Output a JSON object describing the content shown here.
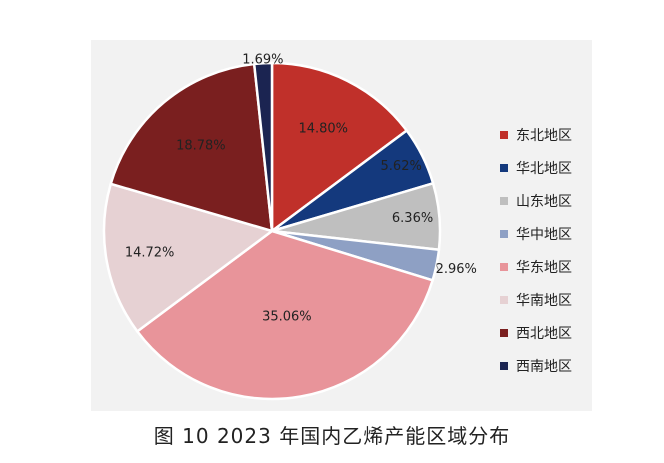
{
  "chart_data": {
    "type": "pie",
    "title": "图 10  2023 年国内乙烯产能区域分布",
    "categories": [
      "东北地区",
      "华北地区",
      "山东地区",
      "华中地区",
      "华东地区",
      "华南地区",
      "西北地区",
      "西南地区"
    ],
    "values": [
      14.8,
      5.62,
      6.36,
      2.96,
      35.06,
      14.72,
      18.78,
      1.69
    ],
    "labels": [
      "14.80%",
      "5.62%",
      "6.36%",
      "2.96%",
      "35.06%",
      "14.72%",
      "18.78%",
      "1.69%"
    ],
    "colors": [
      "#c0302a",
      "#14397d",
      "#bfbfbf",
      "#8ea0c4",
      "#e8949a",
      "#e6d1d3",
      "#7a1f1f",
      "#1b2451"
    ],
    "legend_position": "right"
  }
}
